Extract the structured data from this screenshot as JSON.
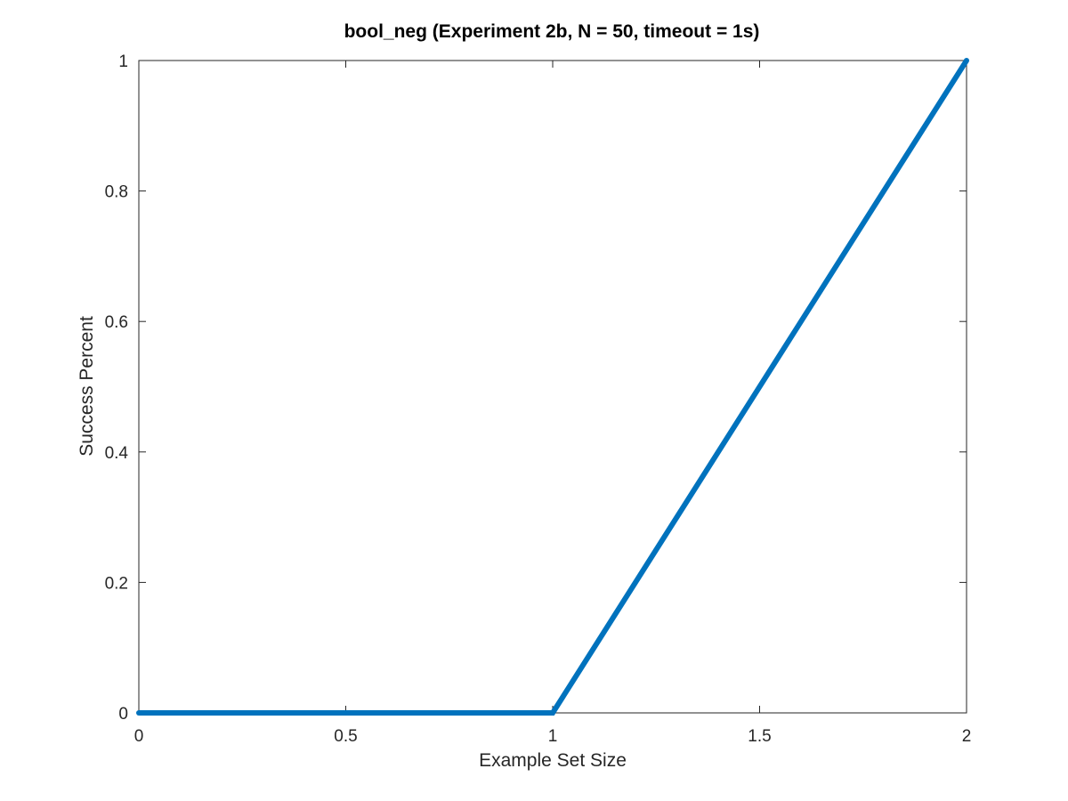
{
  "chart_data": {
    "type": "line",
    "title": "bool_neg (Experiment 2b, N = 50, timeout = 1s)",
    "xlabel": "Example Set Size",
    "ylabel": "Success Percent",
    "xlim": [
      0,
      2
    ],
    "ylim": [
      0,
      1
    ],
    "xticks": [
      0,
      0.5,
      1,
      1.5,
      2
    ],
    "xtick_labels": [
      "0",
      "0.5",
      "1",
      "1.5",
      "2"
    ],
    "yticks": [
      0,
      0.2,
      0.4,
      0.6,
      0.8,
      1
    ],
    "ytick_labels": [
      "0",
      "0.2",
      "0.4",
      "0.6",
      "0.8",
      "1"
    ],
    "grid": false,
    "series": [
      {
        "x": [
          0,
          1,
          2
        ],
        "values": [
          0,
          0,
          1
        ],
        "color": "#0072BD"
      }
    ]
  }
}
